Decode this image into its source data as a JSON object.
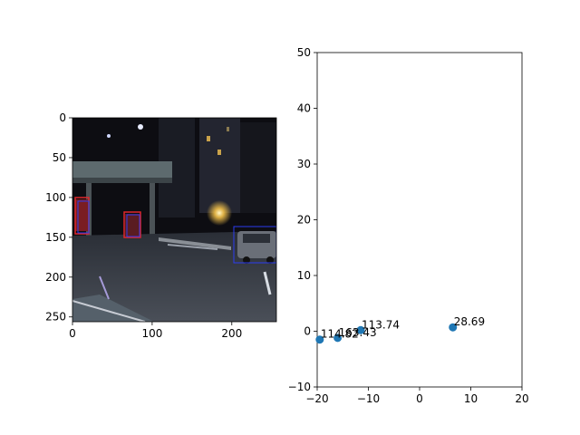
{
  "chart_data": [
    {
      "type": "image",
      "xlim": [
        0,
        256
      ],
      "ylim": [
        256,
        0
      ],
      "xticks": [
        "0",
        "100",
        "200"
      ],
      "yticks": [
        "0",
        "50",
        "100",
        "150",
        "200",
        "250"
      ],
      "image_description_colors": {
        "sky": "#0d0d12",
        "road": "#3b3f48",
        "light": "#f4c24a",
        "box_red": "#e0262a",
        "box_blue": "#2c3cf0"
      }
    },
    {
      "type": "scatter",
      "xlim": [
        -20,
        20
      ],
      "ylim": [
        -10,
        50
      ],
      "xticks": [
        "−20",
        "−10",
        "0",
        "10",
        "20"
      ],
      "yticks": [
        "−10",
        "0",
        "10",
        "20",
        "30",
        "40",
        "50"
      ],
      "marker_color": "#1f77b4",
      "points": [
        {
          "x": -19.5,
          "y": -1.5,
          "label": "114.82"
        },
        {
          "x": -16.0,
          "y": -1.2,
          "label": "163.43"
        },
        {
          "x": -11.5,
          "y": 0.2,
          "label": "113.74"
        },
        {
          "x": 6.5,
          "y": 0.7,
          "label": "28.69"
        }
      ]
    }
  ]
}
